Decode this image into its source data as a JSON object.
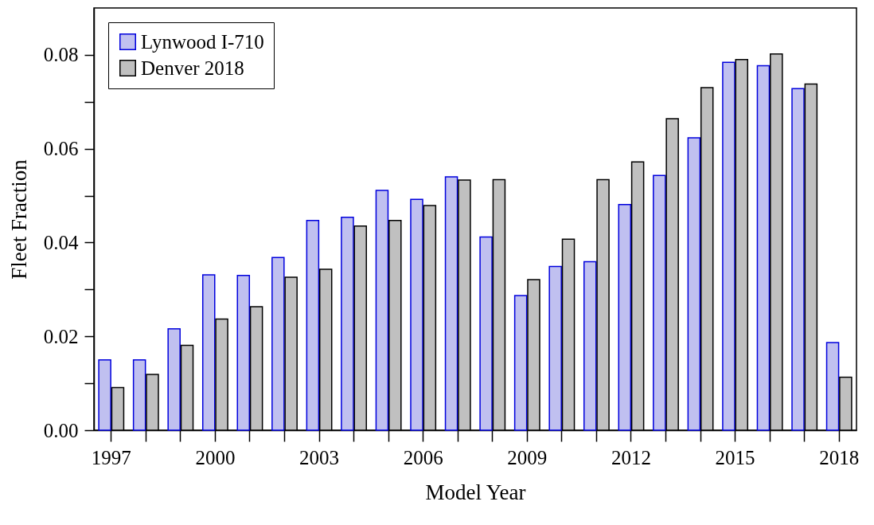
{
  "chart_data": {
    "type": "bar",
    "xlabel": "Model Year",
    "ylabel": "Fleet Fraction",
    "categories": [
      "1997",
      null,
      null,
      "2000",
      null,
      null,
      "2003",
      null,
      null,
      "2006",
      null,
      null,
      "2009",
      null,
      null,
      "2012",
      null,
      null,
      "2015",
      null,
      null,
      "2018"
    ],
    "series": [
      {
        "name": "Lynwood I-710",
        "color": "#c0c0f0",
        "values": [
          0.015,
          0.015,
          0.0216,
          0.0331,
          0.033,
          0.0368,
          0.0447,
          0.0454,
          0.0511,
          0.0492,
          0.054,
          0.0412,
          0.0287,
          0.0349,
          0.0359,
          0.0481,
          0.0543,
          0.0623,
          0.0784,
          0.0777,
          0.0728,
          0.0187
        ]
      },
      {
        "name": "Denver 2018",
        "color": "#c0c0c0",
        "values": [
          0.0091,
          0.0119,
          0.0181,
          0.0237,
          0.0263,
          0.0326,
          0.0343,
          0.0435,
          0.0447,
          0.0479,
          0.0533,
          0.0534,
          0.0321,
          0.0407,
          0.0534,
          0.0572,
          0.0664,
          0.073,
          0.079,
          0.0802,
          0.0738,
          0.0113
        ]
      }
    ],
    "ylim": [
      0,
      0.09
    ],
    "yticks": [
      {
        "value": 0,
        "label": "0.00"
      },
      {
        "value": 0.01,
        "label": null
      },
      {
        "value": 0.02,
        "label": "0.02"
      },
      {
        "value": 0.03,
        "label": null
      },
      {
        "value": 0.04,
        "label": "0.04"
      },
      {
        "value": 0.05,
        "label": null
      },
      {
        "value": 0.06,
        "label": "0.06"
      },
      {
        "value": 0.07,
        "label": null
      },
      {
        "value": 0.08,
        "label": "0.08"
      }
    ],
    "legend": "top left"
  }
}
